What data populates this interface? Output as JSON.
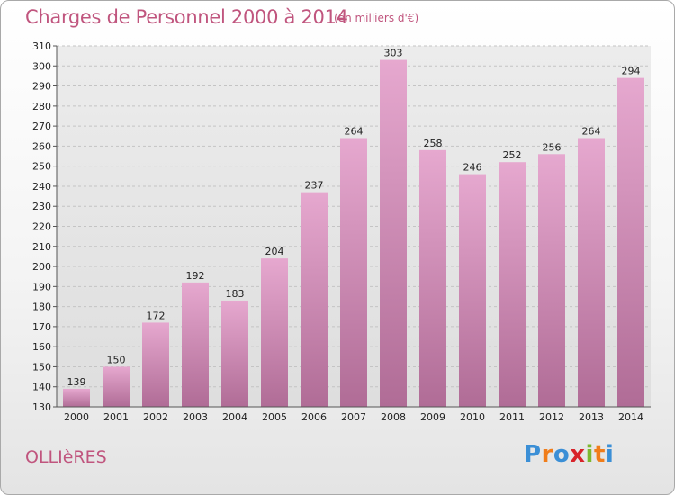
{
  "title": "Charges de Personnel 2000 à 2014",
  "subtitle": "(en milliers d'€)",
  "commune": "OLLIèRES",
  "logo": {
    "letters": [
      "P",
      "r",
      "o",
      "x",
      "i",
      "t",
      "i"
    ],
    "colors": [
      "#3b8fd6",
      "#f07d1a",
      "#3b8fd6",
      "#d8232a",
      "#7cb82f",
      "#f07d1a",
      "#3b8fd6"
    ]
  },
  "colors": {
    "bar_top": "#e6a8cf",
    "bar_bottom": "#b06c96",
    "text_accent": "#c0557e"
  },
  "chart_data": {
    "type": "bar",
    "categories": [
      "2000",
      "2001",
      "2002",
      "2003",
      "2004",
      "2005",
      "2006",
      "2007",
      "2008",
      "2009",
      "2010",
      "2011",
      "2012",
      "2013",
      "2014"
    ],
    "values": [
      139,
      150,
      172,
      192,
      183,
      204,
      237,
      264,
      303,
      258,
      246,
      252,
      256,
      264,
      294
    ],
    "title": "Charges de Personnel 2000 à 2014",
    "ylim": [
      130,
      310
    ],
    "yticks": [
      130,
      140,
      150,
      160,
      170,
      180,
      190,
      200,
      210,
      220,
      230,
      240,
      250,
      260,
      270,
      280,
      290,
      300,
      310
    ],
    "grid": true,
    "data_labels": true
  }
}
